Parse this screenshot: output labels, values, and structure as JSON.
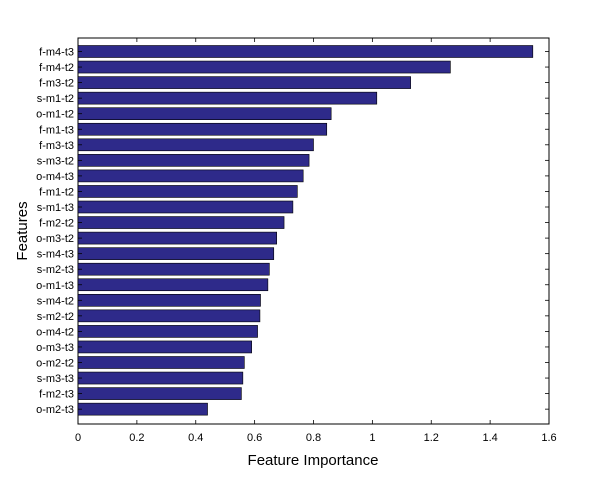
{
  "chart_data": {
    "type": "bar",
    "orientation": "horizontal",
    "title": "",
    "xlabel": "Feature Importance",
    "ylabel": "Features",
    "xlim": [
      0,
      1.6
    ],
    "x_ticks": [
      "0",
      "0.2",
      "0.4",
      "0.6",
      "0.8",
      "1",
      "1.2",
      "1.4",
      "1.6"
    ],
    "grid": false,
    "legend": "none",
    "bar_color": "#2e2a8a",
    "bar_edge_color": "#000000",
    "categories": [
      "f-m4-t3",
      "f-m4-t2",
      "f-m3-t2",
      "s-m1-t2",
      "o-m1-t2",
      "f-m1-t3",
      "f-m3-t3",
      "s-m3-t2",
      "o-m4-t3",
      "f-m1-t2",
      "s-m1-t3",
      "f-m2-t2",
      "o-m3-t2",
      "s-m4-t3",
      "s-m2-t3",
      "o-m1-t3",
      "s-m4-t2",
      "s-m2-t2",
      "o-m4-t2",
      "o-m3-t3",
      "o-m2-t2",
      "s-m3-t3",
      "f-m2-t3",
      "o-m2-t3"
    ],
    "values": [
      1.545,
      1.265,
      1.13,
      1.015,
      0.86,
      0.845,
      0.8,
      0.785,
      0.765,
      0.745,
      0.73,
      0.7,
      0.675,
      0.665,
      0.65,
      0.645,
      0.62,
      0.618,
      0.61,
      0.59,
      0.565,
      0.56,
      0.555,
      0.44
    ]
  }
}
